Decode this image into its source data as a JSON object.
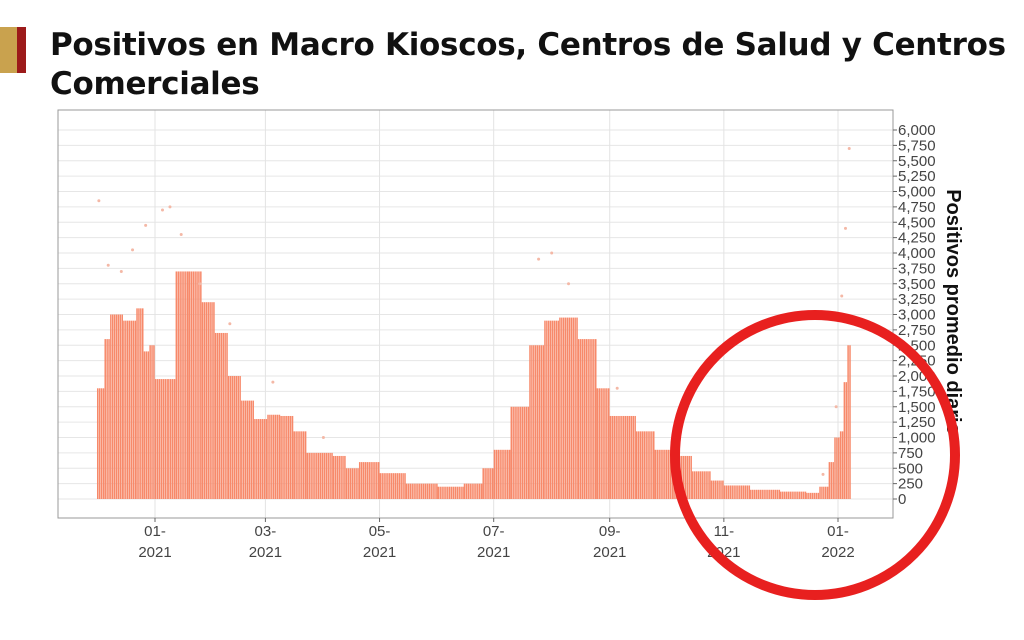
{
  "header": {
    "title_line1": "Positivos en Macro Kioscos, Centros de Salud y Centros",
    "title_line2": "Comerciales",
    "accent_colors": [
      "#c9a24e",
      "#9c1a1a"
    ]
  },
  "chart_data": {
    "type": "bar",
    "title": "Positivos en Macro Kioscos, Centros de Salud y Centros Comerciales",
    "ylabel": "Positivos promedio diario",
    "xlabel": "",
    "y_axis_position": "right",
    "ylim": [
      0,
      6000
    ],
    "yticks": [
      0,
      250,
      500,
      750,
      1000,
      1250,
      1500,
      1750,
      2000,
      2250,
      2500,
      2750,
      3000,
      3250,
      3500,
      3750,
      4000,
      4250,
      4500,
      4750,
      5000,
      5250,
      5500,
      5750,
      6000
    ],
    "ytick_labels": [
      "0",
      "250",
      "500",
      "750",
      "1,000",
      "1,250",
      "1,500",
      "1,750",
      "2,000",
      "2,250",
      "2,500",
      "2,750",
      "3,000",
      "3,250",
      "3,500",
      "3,750",
      "4,000",
      "4,250",
      "4,500",
      "4,750",
      "5,000",
      "5,250",
      "5,500",
      "5,750",
      "6,000"
    ],
    "xlim": [
      "2020-11-10",
      "2022-01-28"
    ],
    "xticks": [
      {
        "date": "2021-01-01",
        "label": [
          "01-",
          "2021"
        ]
      },
      {
        "date": "2021-03-01",
        "label": [
          "03-",
          "2021"
        ]
      },
      {
        "date": "2021-05-01",
        "label": [
          "05-",
          "2021"
        ]
      },
      {
        "date": "2021-07-01",
        "label": [
          "07-",
          "2021"
        ]
      },
      {
        "date": "2021-09-01",
        "label": [
          "09-",
          "2021"
        ]
      },
      {
        "date": "2021-11-01",
        "label": [
          "11-",
          "2021"
        ]
      },
      {
        "date": "2022-01-01",
        "label": [
          "01-",
          "2022"
        ]
      }
    ],
    "grid": true,
    "bar_color": "#f7896a",
    "point_color": "#f4b8a6",
    "series": [
      {
        "kind": "bar",
        "points": [
          [
            "2020-12-01",
            1800
          ],
          [
            "2020-12-05",
            2600
          ],
          [
            "2020-12-08",
            3000
          ],
          [
            "2020-12-15",
            2900
          ],
          [
            "2020-12-22",
            3100
          ],
          [
            "2020-12-26",
            2400
          ],
          [
            "2020-12-29",
            2500
          ],
          [
            "2021-01-01",
            1950
          ],
          [
            "2021-01-08",
            1950
          ],
          [
            "2021-01-12",
            3700
          ],
          [
            "2021-01-19",
            3700
          ],
          [
            "2021-01-26",
            3200
          ],
          [
            "2021-02-02",
            2700
          ],
          [
            "2021-02-09",
            2000
          ],
          [
            "2021-02-16",
            1600
          ],
          [
            "2021-02-23",
            1300
          ],
          [
            "2021-03-02",
            1370
          ],
          [
            "2021-03-09",
            1350
          ],
          [
            "2021-03-16",
            1100
          ],
          [
            "2021-03-23",
            750
          ],
          [
            "2021-04-06",
            700
          ],
          [
            "2021-04-13",
            500
          ],
          [
            "2021-04-20",
            600
          ],
          [
            "2021-05-01",
            420
          ],
          [
            "2021-05-15",
            250
          ],
          [
            "2021-06-01",
            200
          ],
          [
            "2021-06-15",
            250
          ],
          [
            "2021-06-25",
            500
          ],
          [
            "2021-07-01",
            800
          ],
          [
            "2021-07-10",
            1500
          ],
          [
            "2021-07-20",
            2500
          ],
          [
            "2021-07-28",
            2900
          ],
          [
            "2021-08-05",
            2950
          ],
          [
            "2021-08-15",
            2600
          ],
          [
            "2021-08-25",
            1800
          ],
          [
            "2021-09-01",
            1350
          ],
          [
            "2021-09-15",
            1100
          ],
          [
            "2021-09-25",
            800
          ],
          [
            "2021-10-05",
            700
          ],
          [
            "2021-10-15",
            450
          ],
          [
            "2021-10-25",
            300
          ],
          [
            "2021-11-01",
            220
          ],
          [
            "2021-11-15",
            150
          ],
          [
            "2021-12-01",
            120
          ],
          [
            "2021-12-15",
            100
          ],
          [
            "2021-12-22",
            200
          ],
          [
            "2021-12-27",
            600
          ],
          [
            "2021-12-30",
            1000
          ],
          [
            "2022-01-02",
            1100
          ],
          [
            "2022-01-04",
            1900
          ],
          [
            "2022-01-06",
            2500
          ]
        ]
      },
      {
        "kind": "scatter",
        "points": [
          [
            "2020-12-02",
            4850
          ],
          [
            "2020-12-07",
            3800
          ],
          [
            "2020-12-14",
            3700
          ],
          [
            "2020-12-20",
            4050
          ],
          [
            "2020-12-27",
            4450
          ],
          [
            "2021-01-05",
            4700
          ],
          [
            "2021-01-09",
            4750
          ],
          [
            "2021-01-15",
            4300
          ],
          [
            "2021-01-25",
            3500
          ],
          [
            "2021-02-10",
            2850
          ],
          [
            "2021-03-05",
            1900
          ],
          [
            "2021-04-01",
            1000
          ],
          [
            "2021-07-25",
            3900
          ],
          [
            "2021-08-01",
            4000
          ],
          [
            "2021-08-10",
            3500
          ],
          [
            "2021-09-05",
            1800
          ],
          [
            "2021-12-24",
            400
          ],
          [
            "2021-12-31",
            1500
          ],
          [
            "2022-01-03",
            3300
          ],
          [
            "2022-01-05",
            4400
          ],
          [
            "2022-01-07",
            5700
          ]
        ]
      }
    ],
    "annotation": {
      "shape": "circle",
      "color": "#e8201f",
      "around": "2021-11 to 2022-01"
    }
  }
}
